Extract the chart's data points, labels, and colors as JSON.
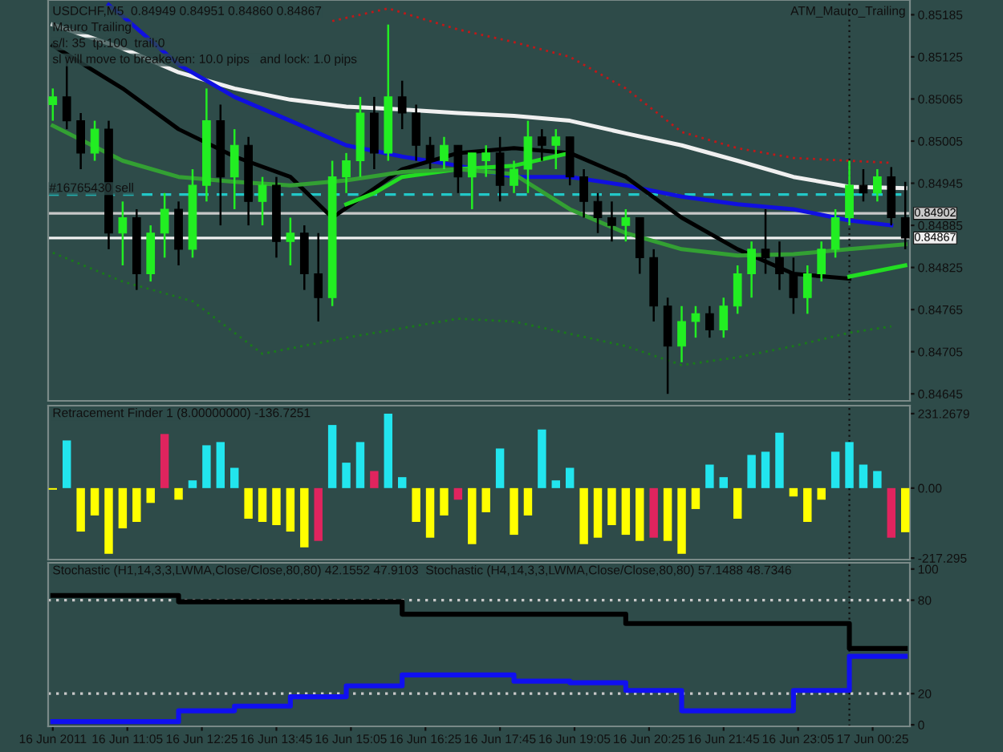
{
  "chart_data": [
    {
      "type": "candlestick",
      "title": "USDCHF,M5  0.84949 0.84951 0.84860 0.84867",
      "x": [
        "2011-06-16T09:45",
        "2011-06-16T10:00",
        "2011-06-16T10:15",
        "2011-06-16T10:30",
        "2011-06-16T10:45",
        "2011-06-16T11:00",
        "2011-06-16T11:15",
        "2011-06-16T11:30",
        "2011-06-16T11:45",
        "2011-06-16T12:00",
        "2011-06-16T12:15",
        "2011-06-16T12:30",
        "2011-06-16T12:45",
        "2011-06-16T13:00",
        "2011-06-16T13:15",
        "2011-06-16T13:30",
        "2011-06-16T13:45",
        "2011-06-16T14:00",
        "2011-06-16T14:15",
        "2011-06-16T14:30",
        "2011-06-16T14:45",
        "2011-06-16T15:00",
        "2011-06-16T15:15",
        "2011-06-16T15:30",
        "2011-06-16T15:45",
        "2011-06-16T16:00",
        "2011-06-16T16:15",
        "2011-06-16T16:30",
        "2011-06-16T16:45",
        "2011-06-16T17:00",
        "2011-06-16T17:15",
        "2011-06-16T17:30",
        "2011-06-16T17:45",
        "2011-06-16T18:00",
        "2011-06-16T18:15",
        "2011-06-16T18:30",
        "2011-06-16T18:45",
        "2011-06-16T19:00",
        "2011-06-16T19:15",
        "2011-06-16T19:30",
        "2011-06-16T19:45",
        "2011-06-16T20:00",
        "2011-06-16T20:15",
        "2011-06-16T20:30",
        "2011-06-16T20:45",
        "2011-06-16T21:00",
        "2011-06-16T21:15",
        "2011-06-16T21:30",
        "2011-06-16T21:45",
        "2011-06-16T22:00",
        "2011-06-16T22:15",
        "2011-06-16T22:30",
        "2011-06-16T22:45",
        "2011-06-16T23:00",
        "2011-06-16T23:15",
        "2011-06-16T23:30",
        "2011-06-16T23:45",
        "2011-06-17T00:00",
        "2011-06-17T00:15",
        "2011-06-17T00:30",
        "2011-06-17T00:45",
        "2011-06-17T01:00"
      ],
      "ohlc": [
        [
          0.85057,
          0.8508,
          0.85034,
          0.85068
        ],
        [
          0.85068,
          0.85125,
          0.85022,
          0.85034
        ],
        [
          0.85034,
          0.85045,
          0.84965,
          0.84988
        ],
        [
          0.84988,
          0.85034,
          0.84977,
          0.85022
        ],
        [
          0.85022,
          0.85034,
          0.84851,
          0.84874
        ],
        [
          0.84874,
          0.84919,
          0.84828,
          0.84896
        ],
        [
          0.84896,
          0.84908,
          0.84793,
          0.84816
        ],
        [
          0.84816,
          0.84885,
          0.84805,
          0.84874
        ],
        [
          0.84874,
          0.84931,
          0.84839,
          0.84908
        ],
        [
          0.84908,
          0.84919,
          0.84828,
          0.84851
        ],
        [
          0.84851,
          0.84965,
          0.84839,
          0.84942
        ],
        [
          0.84942,
          0.8508,
          0.84919,
          0.85034
        ],
        [
          0.85034,
          0.85057,
          0.84885,
          0.84954
        ],
        [
          0.84954,
          0.85022,
          0.84908,
          0.84999
        ],
        [
          0.84999,
          0.85011,
          0.84885,
          0.84919
        ],
        [
          0.84919,
          0.84954,
          0.84885,
          0.84942
        ],
        [
          0.84942,
          0.84954,
          0.84839,
          0.84862
        ],
        [
          0.84862,
          0.84896,
          0.84828,
          0.84874
        ],
        [
          0.84874,
          0.84885,
          0.84793,
          0.84816
        ],
        [
          0.84816,
          0.84874,
          0.84748,
          0.84782
        ],
        [
          0.84782,
          0.84977,
          0.8477,
          0.84954
        ],
        [
          0.84954,
          0.84988,
          0.84931,
          0.84977
        ],
        [
          0.84977,
          0.85068,
          0.84954,
          0.85045
        ],
        [
          0.85045,
          0.85068,
          0.84965,
          0.84988
        ],
        [
          0.84988,
          0.85171,
          0.84977,
          0.85068
        ],
        [
          0.85068,
          0.85091,
          0.85022,
          0.85045
        ],
        [
          0.85045,
          0.85057,
          0.84977,
          0.84999
        ],
        [
          0.84999,
          0.85011,
          0.84965,
          0.84977
        ],
        [
          0.84977,
          0.85011,
          0.84965,
          0.84999
        ],
        [
          0.84999,
          0.84999,
          0.84931,
          0.84954
        ],
        [
          0.84954,
          0.84988,
          0.84908,
          0.84988
        ],
        [
          0.84977,
          0.84999,
          0.84954,
          0.84988
        ],
        [
          0.84988,
          0.85011,
          0.84919,
          0.84942
        ],
        [
          0.84942,
          0.84977,
          0.84931,
          0.84965
        ],
        [
          0.84965,
          0.85034,
          0.84931,
          0.85011
        ],
        [
          0.85011,
          0.85022,
          0.84977,
          0.84999
        ],
        [
          0.84999,
          0.85022,
          0.84965,
          0.85011
        ],
        [
          0.85011,
          0.85011,
          0.84942,
          0.84954
        ],
        [
          0.84954,
          0.84965,
          0.84896,
          0.84919
        ],
        [
          0.84919,
          0.84931,
          0.84874,
          0.84896
        ],
        [
          0.84896,
          0.84919,
          0.84862,
          0.84885
        ],
        [
          0.84885,
          0.84908,
          0.84862,
          0.84896
        ],
        [
          0.84896,
          0.84896,
          0.84816,
          0.84839
        ],
        [
          0.84839,
          0.84851,
          0.84748,
          0.8477
        ],
        [
          0.8477,
          0.84782,
          0.84645,
          0.84713
        ],
        [
          0.84713,
          0.8477,
          0.8469,
          0.84748
        ],
        [
          0.84748,
          0.8477,
          0.84725,
          0.84759
        ],
        [
          0.84759,
          0.8477,
          0.84725,
          0.84736
        ],
        [
          0.84736,
          0.84782,
          0.84725,
          0.8477
        ],
        [
          0.8477,
          0.84828,
          0.84759,
          0.84816
        ],
        [
          0.84816,
          0.84862,
          0.84782,
          0.84851
        ],
        [
          0.84851,
          0.84908,
          0.84816,
          0.84839
        ],
        [
          0.84839,
          0.84862,
          0.84793,
          0.84816
        ],
        [
          0.84816,
          0.84839,
          0.84759,
          0.84782
        ],
        [
          0.84782,
          0.84828,
          0.84759,
          0.84816
        ],
        [
          0.84816,
          0.84862,
          0.84805,
          0.84851
        ],
        [
          0.84851,
          0.84908,
          0.84839,
          0.84896
        ],
        [
          0.84896,
          0.84977,
          0.84885,
          0.84942
        ],
        [
          0.84942,
          0.84965,
          0.84919,
          0.84931
        ],
        [
          0.84931,
          0.84965,
          0.84919,
          0.84954
        ],
        [
          0.84954,
          0.84968,
          0.84885,
          0.84896
        ],
        [
          0.84896,
          0.84947,
          0.84851,
          0.84867
        ]
      ],
      "series": [
        {
          "type": "line",
          "color": "#f0f0f0",
          "x": [
            "2011-06-16T09:45",
            "2011-06-16T11:00",
            "2011-06-16T12:00",
            "2011-06-16T13:00",
            "2011-06-16T14:00",
            "2011-06-16T15:00",
            "2011-06-16T16:00",
            "2011-06-16T17:00",
            "2011-06-16T18:00",
            "2011-06-16T19:00",
            "2011-06-16T20:00",
            "2011-06-16T21:00",
            "2011-06-16T22:00",
            "2011-06-16T23:00",
            "2011-06-17T00:00",
            "2011-06-17T01:00"
          ],
          "values": [
            0.85171,
            0.85137,
            0.85103,
            0.8508,
            0.85064,
            0.85054,
            0.8505,
            0.85045,
            0.85041,
            0.85034,
            0.85016,
            0.84999,
            0.84977,
            0.84954,
            0.8494,
            0.84938
          ]
        },
        {
          "type": "line",
          "color": "#1010e0",
          "x": [
            "2011-06-16T10:45",
            "2011-06-16T11:00",
            "2011-06-16T12:00",
            "2011-06-16T13:00",
            "2011-06-16T14:00",
            "2011-06-16T15:00",
            "2011-06-16T16:00",
            "2011-06-16T17:00",
            "2011-06-16T18:00",
            "2011-06-16T19:00",
            "2011-06-16T20:00",
            "2011-06-16T21:00",
            "2011-06-16T22:00",
            "2011-06-16T23:00",
            "2011-06-17T00:00",
            "2011-06-17T00:45"
          ],
          "values": [
            0.85199,
            0.85183,
            0.85114,
            0.85068,
            0.85034,
            0.84999,
            0.84983,
            0.8497,
            0.84954,
            0.84954,
            0.84942,
            0.84926,
            0.84915,
            0.84908,
            0.84892,
            0.84885
          ]
        },
        {
          "type": "line",
          "color": "#000000",
          "x": [
            "2011-06-16T09:45",
            "2011-06-16T11:00",
            "2011-06-16T12:00",
            "2011-06-16T13:00",
            "2011-06-16T14:00",
            "2011-06-16T14:45",
            "2011-06-16T16:00",
            "2011-06-16T17:00",
            "2011-06-16T18:00",
            "2011-06-16T19:00",
            "2011-06-16T20:00",
            "2011-06-16T21:00",
            "2011-06-16T22:00",
            "2011-06-16T23:00",
            "2011-06-17T00:00"
          ],
          "values": [
            0.85141,
            0.8508,
            0.85022,
            0.84983,
            0.84954,
            0.84896,
            0.84965,
            0.84988,
            0.84995,
            0.84988,
            0.84954,
            0.84896,
            0.84851,
            0.84816,
            0.84809
          ]
        },
        {
          "type": "line",
          "color": "#22dd22",
          "x": [
            "2011-06-16T15:00",
            "2011-06-16T15:30",
            "2011-06-16T16:00",
            "2011-06-16T17:00",
            "2011-06-16T18:00",
            "2011-06-16T19:00",
            "2011-06-16T20:00",
            "2011-06-17T00:00",
            "2011-06-17T01:00"
          ],
          "values": [
            0.84915,
            0.84931,
            0.84954,
            0.84965,
            0.8497,
            0.84988,
            null,
            0.84812,
            0.84828
          ]
        },
        {
          "type": "line",
          "color": "#33a033",
          "x": [
            "2011-06-16T09:45",
            "2011-06-16T11:00",
            "2011-06-16T12:00",
            "2011-06-16T13:00",
            "2011-06-16T14:00",
            "2011-06-16T15:00",
            "2011-06-16T16:00",
            "2011-06-16T17:00",
            "2011-06-16T18:00",
            "2011-06-16T19:00",
            "2011-06-16T20:00",
            "2011-06-16T21:00",
            "2011-06-16T22:00",
            "2011-06-16T23:00",
            "2011-06-17T00:00",
            "2011-06-17T01:00"
          ],
          "values": [
            0.85027,
            0.84977,
            0.84954,
            0.84947,
            0.84942,
            0.84949,
            0.84961,
            0.84965,
            0.84958,
            0.84908,
            0.84874,
            0.84851,
            0.84842,
            0.84844,
            0.84851,
            0.84858
          ]
        },
        {
          "type": "line",
          "color": "#c01818",
          "line_style": "dotted",
          "x": [
            "2011-06-16T14:45",
            "2011-06-16T15:45",
            "2011-06-16T17:00",
            "2011-06-16T18:00",
            "2011-06-16T19:00",
            "2011-06-16T20:00",
            "2011-06-16T21:00",
            "2011-06-16T22:00",
            "2011-06-16T23:00",
            "2011-06-17T00:00",
            "2011-06-17T00:45"
          ],
          "values": [
            0.85176,
            0.85194,
            0.85164,
            0.85146,
            0.85125,
            0.8508,
            0.85018,
            0.84995,
            0.84981,
            0.84977,
            0.84974
          ]
        },
        {
          "type": "line",
          "color": "#1a7a1a",
          "line_style": "dotted",
          "x": [
            "2011-06-16T09:45",
            "2011-06-16T11:00",
            "2011-06-16T12:15",
            "2011-06-16T13:30",
            "2011-06-16T15:00",
            "2011-06-16T17:00",
            "2011-06-16T18:00",
            "2011-06-16T20:00",
            "2011-06-16T21:00",
            "2011-06-16T22:00",
            "2011-06-16T23:00",
            "2011-06-17T00:00",
            "2011-06-17T00:45"
          ],
          "values": [
            0.84846,
            0.84805,
            0.84777,
            0.84702,
            0.84725,
            0.84752,
            0.84748,
            0.84713,
            0.84686,
            0.84697,
            0.84713,
            0.84732,
            0.84741
          ]
        }
      ],
      "xlim": [
        "2011-06-16T09:40",
        "2011-06-17T01:05"
      ],
      "ylim": [
        0.84635,
        0.85206
      ],
      "yticks": [
        0.85185,
        0.85125,
        0.85065,
        0.85005,
        0.84945,
        0.84885,
        0.84825,
        0.84765,
        0.84705,
        0.84645
      ],
      "ref_lines": [
        {
          "axis": "y",
          "value": 0.84929,
          "label": "#16765430 sell",
          "color": "#22c8c8",
          "line_style": "dashed"
        },
        {
          "axis": "y",
          "value": 0.84902,
          "label": "0.84902",
          "color": "#c8c8c8",
          "line_style": "solid"
        },
        {
          "axis": "y",
          "value": 0.84867,
          "label": "0.84867",
          "color": "#f0f0f0",
          "line_style": "solid"
        },
        {
          "axis": "x",
          "value": "2011-06-17T00:00",
          "color": "#101010",
          "line_style": "dotted"
        }
      ],
      "annotations": [
        "Mauro Trailing",
        "s/l: 35  tp:100  trail:0",
        "sl will move to breakeven: 10.0 pips   and lock: 1.0 pips",
        "ATM_Mauro_Trailing"
      ],
      "tick_labels": "y",
      "grid": false
    },
    {
      "type": "bar",
      "title": "Retracement Finder 1 (8.00000000) -136.7251",
      "x": [
        "2011-06-16T09:45",
        "2011-06-16T10:00",
        "2011-06-16T10:15",
        "2011-06-16T10:30",
        "2011-06-16T10:45",
        "2011-06-16T11:00",
        "2011-06-16T11:15",
        "2011-06-16T11:30",
        "2011-06-16T11:45",
        "2011-06-16T12:00",
        "2011-06-16T12:15",
        "2011-06-16T12:30",
        "2011-06-16T12:45",
        "2011-06-16T13:00",
        "2011-06-16T13:15",
        "2011-06-16T13:30",
        "2011-06-16T13:45",
        "2011-06-16T14:00",
        "2011-06-16T14:15",
        "2011-06-16T14:30",
        "2011-06-16T14:45",
        "2011-06-16T15:00",
        "2011-06-16T15:15",
        "2011-06-16T15:30",
        "2011-06-16T15:45",
        "2011-06-16T16:00",
        "2011-06-16T16:15",
        "2011-06-16T16:30",
        "2011-06-16T16:45",
        "2011-06-16T17:00",
        "2011-06-16T17:15",
        "2011-06-16T17:30",
        "2011-06-16T17:45",
        "2011-06-16T18:00",
        "2011-06-16T18:15",
        "2011-06-16T18:30",
        "2011-06-16T18:45",
        "2011-06-16T19:00",
        "2011-06-16T19:15",
        "2011-06-16T19:30",
        "2011-06-16T19:45",
        "2011-06-16T20:00",
        "2011-06-16T20:15",
        "2011-06-16T20:30",
        "2011-06-16T20:45",
        "2011-06-16T21:00",
        "2011-06-16T21:15",
        "2011-06-16T21:30",
        "2011-06-16T21:45",
        "2011-06-16T22:00",
        "2011-06-16T22:15",
        "2011-06-16T22:30",
        "2011-06-16T22:45",
        "2011-06-16T23:00",
        "2011-06-16T23:15",
        "2011-06-16T23:30",
        "2011-06-16T23:45",
        "2011-06-17T00:00",
        "2011-06-17T00:15",
        "2011-06-17T00:30",
        "2011-06-17T00:45",
        "2011-06-17T01:00"
      ],
      "values": [
        -5,
        148,
        -135,
        -85,
        -204,
        -125,
        -105,
        -46,
        168,
        -36,
        24,
        133,
        143,
        63,
        -95,
        -105,
        -115,
        -135,
        -184,
        -164,
        196,
        79,
        143,
        53,
        231,
        34,
        -105,
        -154,
        -85,
        -36,
        -174,
        -75,
        123,
        -145,
        -85,
        182,
        24,
        63,
        -174,
        -154,
        -115,
        -145,
        -164,
        -154,
        -164,
        -204,
        -65,
        73,
        34,
        -95,
        103,
        113,
        172,
        -26,
        -105,
        -36,
        113,
        143,
        73,
        53,
        -154,
        -137
      ],
      "colors": [
        "#ffff00",
        "#22e5ee",
        "#ffff00",
        "#ffff00",
        "#ffff00",
        "#ffff00",
        "#ffff00",
        "#ffff00",
        "#e0245e",
        "#ffff00",
        "#22e5ee",
        "#22e5ee",
        "#22e5ee",
        "#22e5ee",
        "#ffff00",
        "#ffff00",
        "#ffff00",
        "#ffff00",
        "#ffff00",
        "#e0245e",
        "#22e5ee",
        "#22e5ee",
        "#22e5ee",
        "#e0245e",
        "#22e5ee",
        "#22e5ee",
        "#ffff00",
        "#ffff00",
        "#ffff00",
        "#e0245e",
        "#ffff00",
        "#ffff00",
        "#22e5ee",
        "#ffff00",
        "#ffff00",
        "#22e5ee",
        "#22e5ee",
        "#22e5ee",
        "#ffff00",
        "#ffff00",
        "#ffff00",
        "#ffff00",
        "#ffff00",
        "#e0245e",
        "#ffff00",
        "#ffff00",
        "#ffff00",
        "#22e5ee",
        "#22e5ee",
        "#ffff00",
        "#22e5ee",
        "#22e5ee",
        "#22e5ee",
        "#ffff00",
        "#ffff00",
        "#ffff00",
        "#22e5ee",
        "#22e5ee",
        "#22e5ee",
        "#22e5ee",
        "#e0245e",
        "#ffff00"
      ],
      "xlim": [
        "2011-06-16T09:40",
        "2011-06-17T01:05"
      ],
      "ylim": [
        -222,
        256
      ],
      "yticks": [
        231.2679,
        {
          "value": 0,
          "label": "0.00"
        },
        -217.295
      ],
      "ref_lines": [
        {
          "axis": "x",
          "value": "2011-06-17T00:00",
          "color": "#101010",
          "line_style": "dotted"
        }
      ],
      "tick_labels": "y",
      "grid": false
    },
    {
      "type": "step",
      "title": "Stochastic (H1,14,3,3,LWMA,Close/Close,80,80) 42.1552 47.9103  Stochastic (H4,14,3,3,LWMA,Close/Close,80,80) 57.1488 48.7346",
      "series": [
        {
          "color": "#000000",
          "x": [
            "2011-06-16T09:45",
            "2011-06-16T12:00",
            "2011-06-16T16:00",
            "2011-06-16T20:00",
            "2011-06-17T00:00",
            "2011-06-17T01:00"
          ],
          "values": [
            83,
            79,
            71,
            65,
            49,
            49
          ]
        },
        {
          "color": "#1010f0",
          "x": [
            "2011-06-16T09:45",
            "2011-06-16T12:00",
            "2011-06-16T13:00",
            "2011-06-16T14:00",
            "2011-06-16T15:00",
            "2011-06-16T16:00",
            "2011-06-16T17:00",
            "2011-06-16T18:00",
            "2011-06-16T19:00",
            "2011-06-16T20:00",
            "2011-06-16T21:00",
            "2011-06-16T22:00",
            "2011-06-16T23:00",
            "2011-06-17T00:00",
            "2011-06-17T01:00"
          ],
          "values": [
            2,
            9,
            12,
            18,
            25,
            32,
            32,
            28,
            27,
            22,
            9,
            9,
            22,
            44,
            44
          ]
        }
      ],
      "xlim": [
        "2011-06-16T09:40",
        "2011-06-17T01:05"
      ],
      "ylim": [
        -1,
        104
      ],
      "yticks": [
        100,
        80,
        20,
        0
      ],
      "xticks": [
        {
          "value": "2011-06-16T09:45",
          "label": "16 Jun 2011"
        },
        {
          "value": "2011-06-16T11:05",
          "label": "16 Jun 11:05"
        },
        {
          "value": "2011-06-16T12:25",
          "label": "16 Jun 12:25"
        },
        {
          "value": "2011-06-16T13:45",
          "label": "16 Jun 13:45"
        },
        {
          "value": "2011-06-16T15:05",
          "label": "16 Jun 15:05"
        },
        {
          "value": "2011-06-16T16:25",
          "label": "16 Jun 16:25"
        },
        {
          "value": "2011-06-16T17:45",
          "label": "16 Jun 17:45"
        },
        {
          "value": "2011-06-16T19:05",
          "label": "16 Jun 19:05"
        },
        {
          "value": "2011-06-16T20:25",
          "label": "16 Jun 20:25"
        },
        {
          "value": "2011-06-16T21:45",
          "label": "16 Jun 21:45"
        },
        {
          "value": "2011-06-16T23:05",
          "label": "16 Jun 23:05"
        },
        {
          "value": "2011-06-17T00:25",
          "label": "17 Jun 00:25"
        }
      ],
      "ref_lines": [
        {
          "axis": "y",
          "value": 80,
          "color": "#c8c8c8",
          "line_style": "dotted"
        },
        {
          "axis": "y",
          "value": 20,
          "color": "#c8c8c8",
          "line_style": "dotted"
        },
        {
          "axis": "x",
          "value": "2011-06-17T00:00",
          "color": "#101010",
          "line_style": "dotted"
        }
      ],
      "grid": false
    }
  ]
}
